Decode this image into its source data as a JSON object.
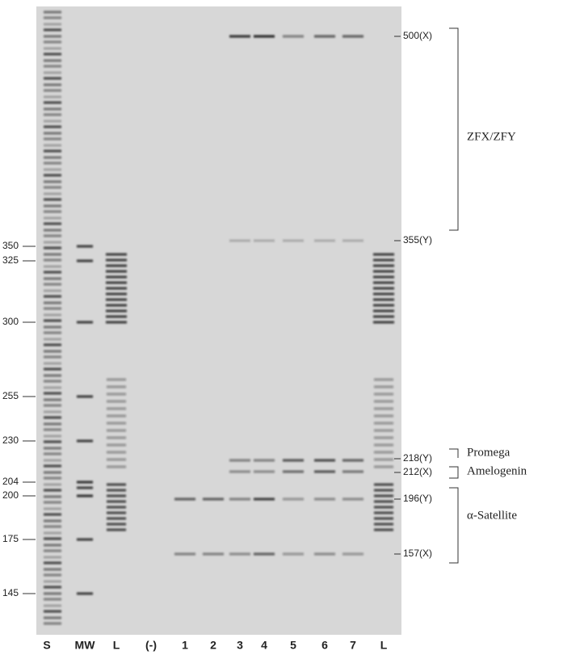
{
  "size_markers": [
    "350",
    "325",
    "300",
    "255",
    "230",
    "204",
    "200",
    "175",
    "145"
  ],
  "band_labels": [
    "500(X)",
    "355(Y)",
    "218(Y)",
    "212(X)",
    "196(Y)",
    "157(X)"
  ],
  "groups": [
    "ZFX/ZFY",
    "Promega",
    "Amelogenin",
    "α-Satellite"
  ],
  "lanes": [
    "S",
    "MW",
    "L",
    "(-)",
    "1",
    "2",
    "3",
    "4",
    "5",
    "6",
    "7",
    "L"
  ]
}
